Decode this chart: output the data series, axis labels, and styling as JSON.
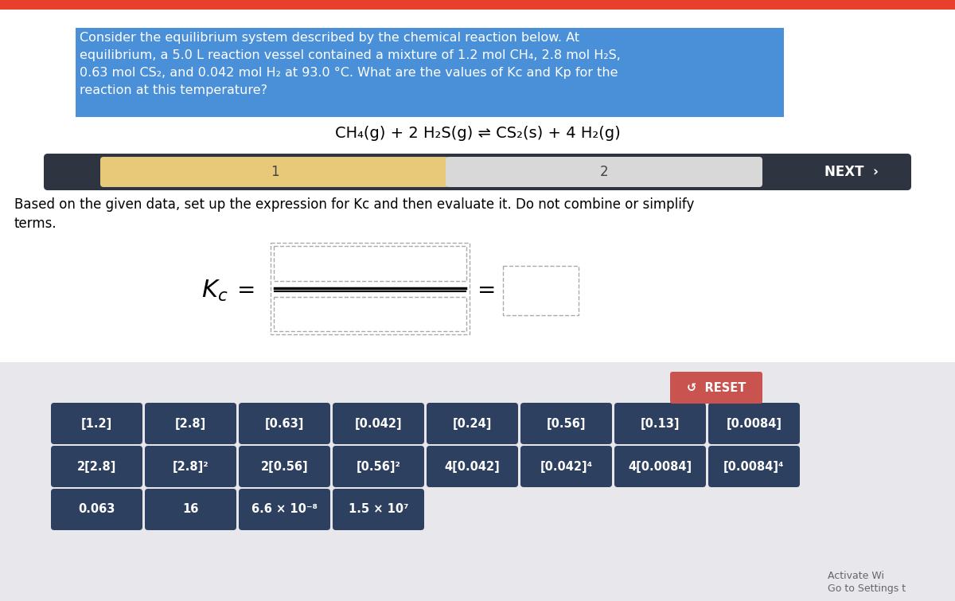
{
  "bg_color": "#ffffff",
  "top_bar_color": "#e8402a",
  "problem_text_lines": [
    "Consider the equilibrium system described by the chemical reaction below. At",
    "equilibrium, a 5.0 L reaction vessel contained a mixture of 1.2 mol CH₄, 2.8 mol H₂S,",
    "0.63 mol CS₂, and 0.042 mol H₂ at 93.0 °C. What are the values of Kc and Kp for the",
    "reaction at this temperature?"
  ],
  "problem_highlight_color": "#4a90d9",
  "reaction_text": "CH₄(g) + 2 H₂S(g) ⇌ CS₂(s) + 4 H₂(g)",
  "nav_bar_color": "#2e3440",
  "nav_section1_color": "#e8c97a",
  "nav_section1_label": "1",
  "nav_section2_color": "#d8d8d8",
  "nav_section2_label": "2",
  "nav_next_label": "NEXT  ›",
  "instruction_line1": "Based on the given data, set up the expression for Kc and then evaluate it. Do not combine or simplify",
  "instruction_line2": "terms.",
  "bottom_panel_color": "#e8e8ec",
  "reset_btn_color": "#c9534f",
  "reset_btn_label": "↺  RESET",
  "button_color": "#2e4060",
  "button_text_color": "#ffffff",
  "row1_buttons": [
    "[1.2]",
    "[2.8]",
    "[0.63]",
    "[0.042]",
    "[0.24]",
    "[0.56]",
    "[0.13]",
    "[0.0084]"
  ],
  "row2_buttons": [
    "2[2.8]",
    "[2.8]²",
    "2[0.56]",
    "[0.56]²",
    "4[0.042]",
    "[0.042]⁴",
    "4[0.0084]",
    "[0.0084]⁴"
  ],
  "row3_buttons": [
    "0.063",
    "16",
    "6.6 × 10⁻⁸",
    "1.5 × 10⁷"
  ],
  "activate_text": "Activate Wi",
  "settings_text": "Go to Settings t"
}
